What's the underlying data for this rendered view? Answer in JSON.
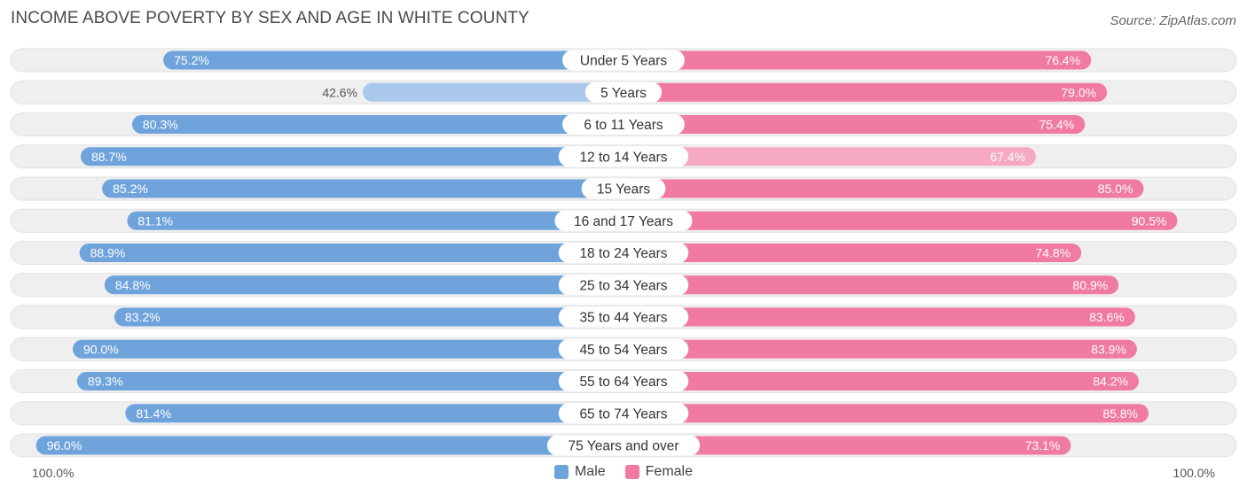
{
  "title": "INCOME ABOVE POVERTY BY SEX AND AGE IN WHITE COUNTY",
  "source": "Source: ZipAtlas.com",
  "colors": {
    "male": "#6fa3dc",
    "male_light": "#a9c8ec",
    "female": "#f07aa0",
    "female_light": "#f5a9c3",
    "track": "#efefef"
  },
  "chart_data": {
    "type": "bar",
    "orientation": "diverging-horizontal",
    "title": "INCOME ABOVE POVERTY BY SEX AND AGE IN WHITE COUNTY",
    "xlim": [
      0,
      100
    ],
    "axis_left_label": "100.0%",
    "axis_right_label": "100.0%",
    "categories": [
      "Under 5 Years",
      "5 Years",
      "6 to 11 Years",
      "12 to 14 Years",
      "15 Years",
      "16 and 17 Years",
      "18 to 24 Years",
      "25 to 34 Years",
      "35 to 44 Years",
      "45 to 54 Years",
      "55 to 64 Years",
      "65 to 74 Years",
      "75 Years and over"
    ],
    "series": [
      {
        "name": "Male",
        "values": [
          75.2,
          42.6,
          80.3,
          88.7,
          85.2,
          81.1,
          88.9,
          84.8,
          83.2,
          90.0,
          89.3,
          81.4,
          96.0
        ],
        "labels": [
          "75.2%",
          "42.6%",
          "80.3%",
          "88.7%",
          "85.2%",
          "81.1%",
          "88.9%",
          "84.8%",
          "83.2%",
          "90.0%",
          "89.3%",
          "81.4%",
          "96.0%"
        ]
      },
      {
        "name": "Female",
        "values": [
          76.4,
          79.0,
          75.4,
          67.4,
          85.0,
          90.5,
          74.8,
          80.9,
          83.6,
          83.9,
          84.2,
          85.8,
          73.1
        ],
        "labels": [
          "76.4%",
          "79.0%",
          "75.4%",
          "67.4%",
          "85.0%",
          "90.5%",
          "74.8%",
          "80.9%",
          "83.6%",
          "83.9%",
          "84.2%",
          "85.8%",
          "73.1%"
        ]
      }
    ],
    "legend": [
      "Male",
      "Female"
    ],
    "legend_position": "bottom-center"
  }
}
